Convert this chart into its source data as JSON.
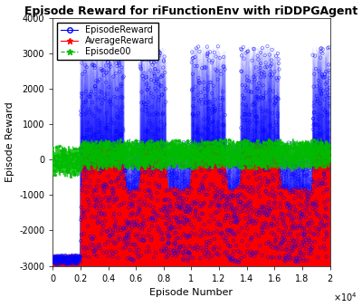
{
  "title": "Episode Reward for riFunctionEnv with riDDPGAgent",
  "xlabel": "Episode Number",
  "ylabel": "Episode Reward",
  "xlim": [
    0,
    20000
  ],
  "ylim": [
    -3000,
    4000
  ],
  "yticks": [
    -3000,
    -2000,
    -1000,
    0,
    1000,
    2000,
    3000,
    4000
  ],
  "n_episodes": 20000,
  "legend_labels": [
    "EpisodeReward",
    "AverageReward",
    "Episode00"
  ],
  "episode_reward_color": "#0000ff",
  "average_reward_color": "#ff0000",
  "episode00_color": "#00bb00",
  "background_color": "#ffffff",
  "title_fontsize": 9,
  "label_fontsize": 8,
  "tick_fontsize": 7,
  "legend_fontsize": 7
}
